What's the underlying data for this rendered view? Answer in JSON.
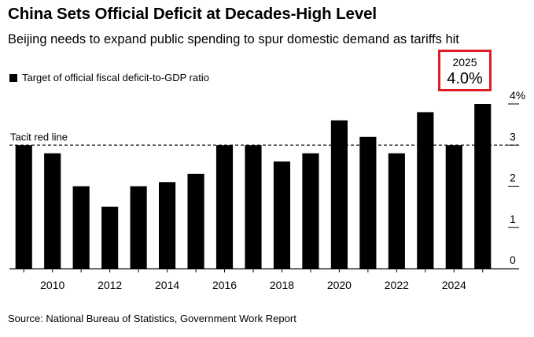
{
  "title": "China Sets Official Deficit at Decades-High Level",
  "subtitle": "Beijing needs to expand public spending to spur domestic demand as tariffs hit",
  "legend_label": "Target of official fiscal deficit-to-GDP ratio",
  "callout": {
    "year": "2025",
    "value": "4.0%"
  },
  "source": "Source: National Bureau of Statistics, Government Work Report",
  "colors": {
    "bar": "#000000",
    "callout_border": "#e01b22",
    "axis": "#000000"
  },
  "chart_data": {
    "type": "bar",
    "title": "China Sets Official Deficit at Decades-High Level",
    "xlabel": "",
    "ylabel": "",
    "ylim": [
      0,
      4
    ],
    "y_ticks": [
      0,
      1,
      2,
      3,
      4
    ],
    "y_tick_labels": [
      "0",
      "1",
      "2",
      "3",
      "4%"
    ],
    "x_tick_labels": [
      "2010",
      "2012",
      "2014",
      "2016",
      "2018",
      "2020",
      "2022",
      "2024"
    ],
    "categories": [
      "2009",
      "2010",
      "2011",
      "2012",
      "2013",
      "2014",
      "2015",
      "2016",
      "2017",
      "2018",
      "2019",
      "2020",
      "2021",
      "2022",
      "2023",
      "2024",
      "2025"
    ],
    "values": [
      3.0,
      2.8,
      2.0,
      1.5,
      2.0,
      2.1,
      2.3,
      3.0,
      3.0,
      2.6,
      2.8,
      3.6,
      3.2,
      2.8,
      3.8,
      3.0,
      4.0
    ],
    "reference_line": {
      "value": 3.0,
      "label": "Tacit red line",
      "style": "dashed"
    },
    "legend": [
      "Target of official fiscal deficit-to-GDP ratio"
    ],
    "legend_position": "top-left"
  }
}
